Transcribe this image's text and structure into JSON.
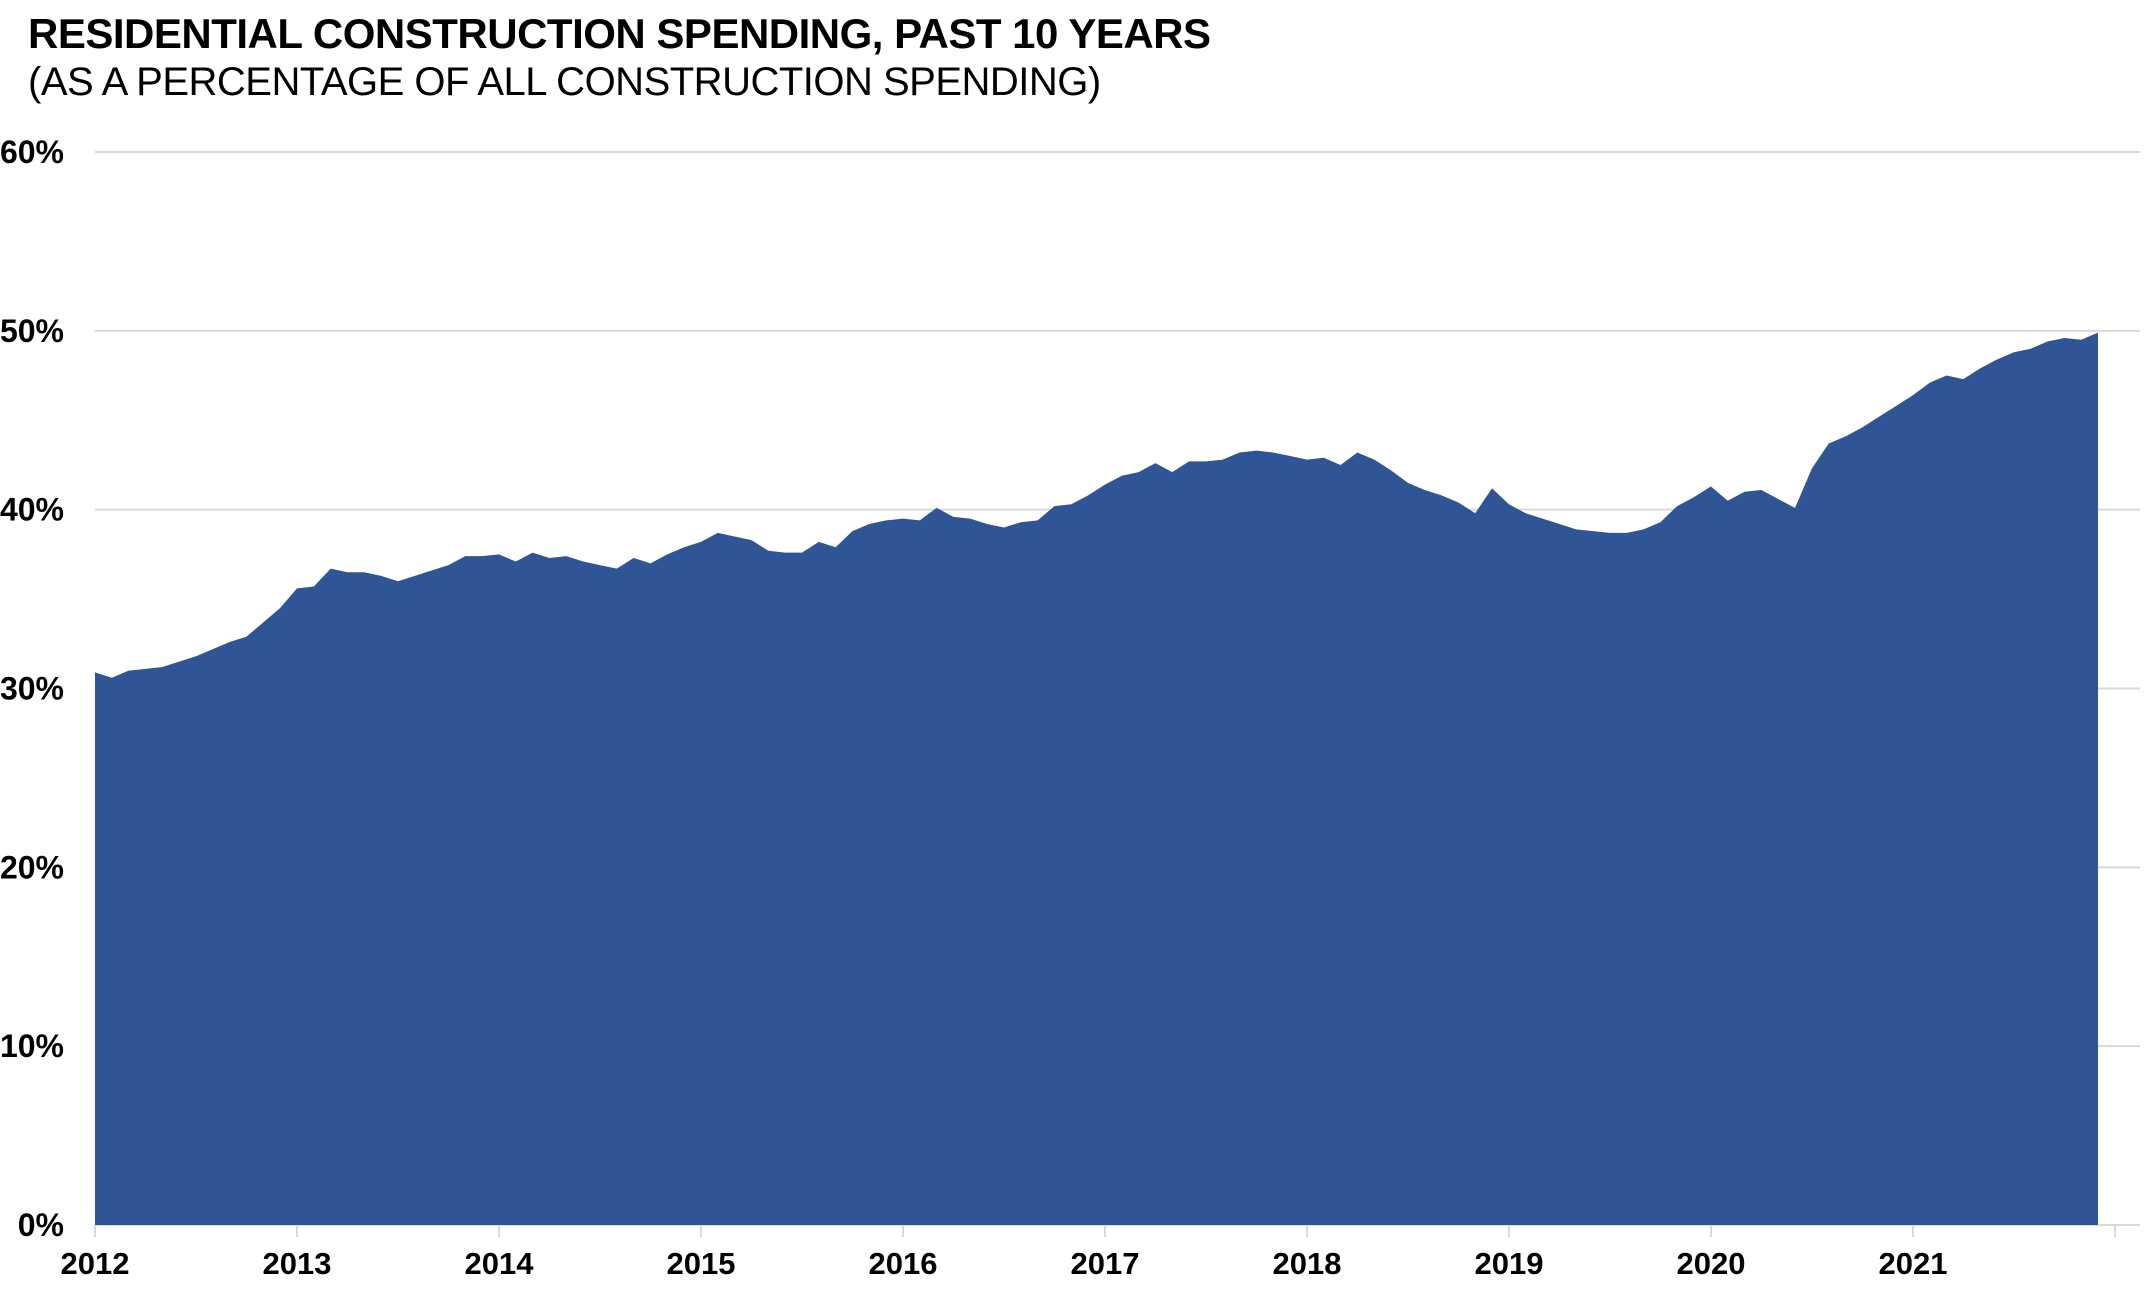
{
  "header": {
    "title": "RESIDENTIAL CONSTRUCTION SPENDING, PAST 10 YEARS",
    "subtitle": "(AS A PERCENTAGE OF ALL CONSTRUCTION SPENDING)"
  },
  "chart_data": {
    "type": "area",
    "title": "RESIDENTIAL CONSTRUCTION SPENDING, PAST 10 YEARS",
    "subtitle": "(AS A PERCENTAGE OF ALL CONSTRUCTION SPENDING)",
    "unit": "%",
    "legend": "none",
    "grid": "horizontal",
    "x_axis": {
      "tick_labels": [
        "2012",
        "2013",
        "2014",
        "2015",
        "2016",
        "2017",
        "2018",
        "2019",
        "2020",
        "2021"
      ],
      "frequency": "monthly",
      "start": "2012-01",
      "end": "2021-12"
    },
    "y_axis": {
      "tick_labels": [
        "0%",
        "10%",
        "20%",
        "30%",
        "40%",
        "50%",
        "60%"
      ],
      "min": 0,
      "max": 60,
      "step": 10
    },
    "colors": {
      "area_fill": "#2F5597",
      "gridline": "#D9D9D9",
      "axis_text": "#000000"
    },
    "series": [
      {
        "name": "Residential construction spending as % of all construction spending",
        "frequency": "monthly",
        "start": "2012-01",
        "values": [
          30.9,
          30.6,
          31.0,
          31.1,
          31.2,
          31.5,
          31.8,
          32.2,
          32.6,
          32.9,
          33.7,
          34.5,
          35.6,
          35.7,
          36.7,
          36.5,
          36.5,
          36.3,
          36.0,
          36.3,
          36.6,
          36.9,
          37.4,
          37.4,
          37.5,
          37.1,
          37.6,
          37.3,
          37.4,
          37.1,
          36.9,
          36.7,
          37.3,
          37.0,
          37.5,
          37.9,
          38.2,
          38.7,
          38.5,
          38.3,
          37.7,
          37.6,
          37.6,
          38.2,
          37.9,
          38.8,
          39.2,
          39.4,
          39.5,
          39.4,
          40.1,
          39.6,
          39.5,
          39.2,
          39.0,
          39.3,
          39.4,
          40.2,
          40.3,
          40.8,
          41.4,
          41.9,
          42.1,
          42.6,
          42.1,
          42.7,
          42.7,
          42.8,
          43.2,
          43.3,
          43.2,
          43.0,
          42.8,
          42.9,
          42.5,
          43.2,
          42.8,
          42.2,
          41.5,
          41.1,
          40.8,
          40.4,
          39.8,
          41.2,
          40.3,
          39.8,
          39.5,
          39.2,
          38.9,
          38.8,
          38.7,
          38.7,
          38.9,
          39.3,
          40.2,
          40.7,
          41.3,
          40.5,
          41.0,
          41.1,
          40.6,
          40.1,
          42.3,
          43.7,
          44.1,
          44.6,
          45.2,
          45.8,
          46.4,
          47.1,
          47.5,
          47.3,
          47.9,
          48.4,
          48.8,
          49.0,
          49.4,
          49.6,
          49.5,
          49.9
        ]
      }
    ]
  }
}
